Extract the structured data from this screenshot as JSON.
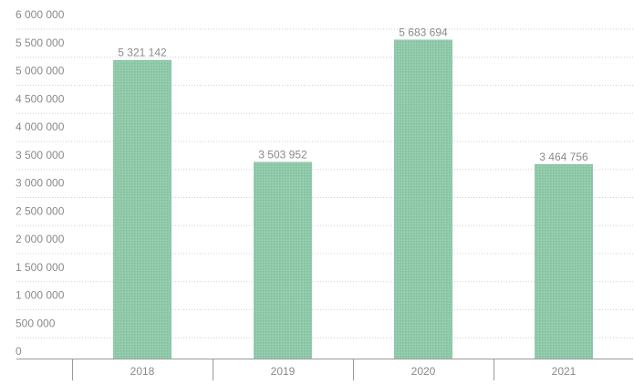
{
  "chart_data": {
    "type": "bar",
    "title": "",
    "xlabel": "",
    "ylabel": "",
    "categories": [
      "2018",
      "2019",
      "2020",
      "2021"
    ],
    "values": [
      5321142,
      3503952,
      5683694,
      3464756
    ],
    "value_labels": [
      "5 321 142",
      "3 503 952",
      "5 683 694",
      "3 464 756"
    ],
    "ylim": [
      0,
      6000000
    ],
    "yticks": [
      0,
      500000,
      1000000,
      1500000,
      2000000,
      2500000,
      3000000,
      3500000,
      4000000,
      4500000,
      5000000,
      5500000,
      6000000
    ],
    "ytick_labels": [
      "0",
      "500 000",
      "1 000 000",
      "1 500 000",
      "2 000 000",
      "2 500 000",
      "3 000 000",
      "3 500 000",
      "4 000 000",
      "4 500 000",
      "5 000 000",
      "5 500 000",
      "6 000 000"
    ],
    "grid": true,
    "legend": "none",
    "bar_color": "#8fc9a9"
  }
}
